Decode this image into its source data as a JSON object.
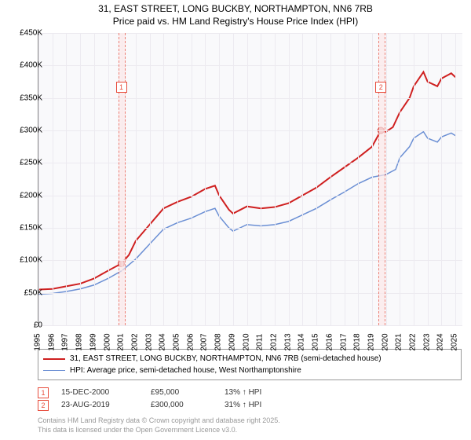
{
  "title": {
    "line1": "31, EAST STREET, LONG BUCKBY, NORTHAMPTON, NN6 7RB",
    "line2": "Price paid vs. HM Land Registry's House Price Index (HPI)"
  },
  "chart": {
    "type": "line",
    "background_color": "#f9f9fb",
    "grid_color": "#eceaf0",
    "x_years": [
      1995,
      1996,
      1997,
      1998,
      1999,
      2000,
      2001,
      2002,
      2003,
      2004,
      2005,
      2006,
      2007,
      2008,
      2009,
      2010,
      2011,
      2012,
      2013,
      2014,
      2015,
      2016,
      2017,
      2018,
      2019,
      2020,
      2021,
      2022,
      2023,
      2024,
      2025
    ],
    "xlim": [
      1995,
      2025.5
    ],
    "y_ticks": [
      0,
      50000,
      100000,
      150000,
      200000,
      250000,
      300000,
      350000,
      400000,
      450000
    ],
    "y_tick_labels": [
      "£0",
      "£50K",
      "£100K",
      "£150K",
      "£200K",
      "£250K",
      "£300K",
      "£350K",
      "£400K",
      "£450K"
    ],
    "ylim": [
      0,
      450000
    ],
    "x_label_fontsize": 10,
    "y_label_fontsize": 10,
    "series": [
      {
        "id": "property",
        "label": "31, EAST STREET, LONG BUCKBY, NORTHAMPTON, NN6 7RB (semi-detached house)",
        "color": "#cf2020",
        "line_width": 2,
        "data": [
          [
            1995,
            55000
          ],
          [
            1996,
            56000
          ],
          [
            1997,
            60000
          ],
          [
            1998,
            64000
          ],
          [
            1999,
            72000
          ],
          [
            2000,
            84000
          ],
          [
            2000.96,
            95000
          ],
          [
            2001.5,
            108000
          ],
          [
            2002,
            130000
          ],
          [
            2003,
            155000
          ],
          [
            2004,
            180000
          ],
          [
            2005,
            190000
          ],
          [
            2006,
            198000
          ],
          [
            2007,
            210000
          ],
          [
            2007.7,
            215000
          ],
          [
            2008,
            200000
          ],
          [
            2008.7,
            178000
          ],
          [
            2009,
            172000
          ],
          [
            2010,
            183000
          ],
          [
            2011,
            180000
          ],
          [
            2012,
            182000
          ],
          [
            2013,
            188000
          ],
          [
            2014,
            200000
          ],
          [
            2015,
            212000
          ],
          [
            2016,
            228000
          ],
          [
            2017,
            243000
          ],
          [
            2018,
            258000
          ],
          [
            2019,
            275000
          ],
          [
            2019.64,
            300000
          ],
          [
            2020,
            298000
          ],
          [
            2020.5,
            305000
          ],
          [
            2021,
            328000
          ],
          [
            2021.7,
            350000
          ],
          [
            2022,
            368000
          ],
          [
            2022.7,
            390000
          ],
          [
            2023,
            375000
          ],
          [
            2023.7,
            368000
          ],
          [
            2024,
            380000
          ],
          [
            2024.7,
            388000
          ],
          [
            2025,
            382000
          ]
        ]
      },
      {
        "id": "hpi",
        "label": "HPI: Average price, semi-detached house, West Northamptonshire",
        "color": "#6b8fd4",
        "line_width": 1.5,
        "data": [
          [
            1995,
            48000
          ],
          [
            1996,
            49000
          ],
          [
            1997,
            52000
          ],
          [
            1998,
            56000
          ],
          [
            1999,
            62000
          ],
          [
            2000,
            72000
          ],
          [
            2001,
            84000
          ],
          [
            2002,
            102000
          ],
          [
            2003,
            125000
          ],
          [
            2004,
            148000
          ],
          [
            2005,
            158000
          ],
          [
            2006,
            165000
          ],
          [
            2007,
            175000
          ],
          [
            2007.7,
            180000
          ],
          [
            2008,
            168000
          ],
          [
            2008.7,
            150000
          ],
          [
            2009,
            145000
          ],
          [
            2010,
            155000
          ],
          [
            2011,
            153000
          ],
          [
            2012,
            155000
          ],
          [
            2013,
            160000
          ],
          [
            2014,
            170000
          ],
          [
            2015,
            180000
          ],
          [
            2016,
            193000
          ],
          [
            2017,
            205000
          ],
          [
            2018,
            218000
          ],
          [
            2019,
            228000
          ],
          [
            2020,
            232000
          ],
          [
            2020.7,
            240000
          ],
          [
            2021,
            258000
          ],
          [
            2021.7,
            275000
          ],
          [
            2022,
            288000
          ],
          [
            2022.7,
            298000
          ],
          [
            2023,
            288000
          ],
          [
            2023.7,
            282000
          ],
          [
            2024,
            290000
          ],
          [
            2024.7,
            296000
          ],
          [
            2025,
            292000
          ]
        ]
      }
    ],
    "sale_markers": [
      {
        "n": "1",
        "date_x": 2000.96,
        "price_y": 95000,
        "band_width_years": 0.4,
        "label_top": 62
      },
      {
        "n": "2",
        "date_x": 2019.64,
        "price_y": 300000,
        "band_width_years": 0.4,
        "label_top": 62
      }
    ]
  },
  "legend": {
    "border_color": "#999999"
  },
  "sales": [
    {
      "n": "1",
      "date": "15-DEC-2000",
      "price": "£95,000",
      "delta": "13% ↑ HPI"
    },
    {
      "n": "2",
      "date": "23-AUG-2019",
      "price": "£300,000",
      "delta": "31% ↑ HPI"
    }
  ],
  "copyright": {
    "line1": "Contains HM Land Registry data © Crown copyright and database right 2025.",
    "line2": "This data is licensed under the Open Government Licence v3.0."
  }
}
